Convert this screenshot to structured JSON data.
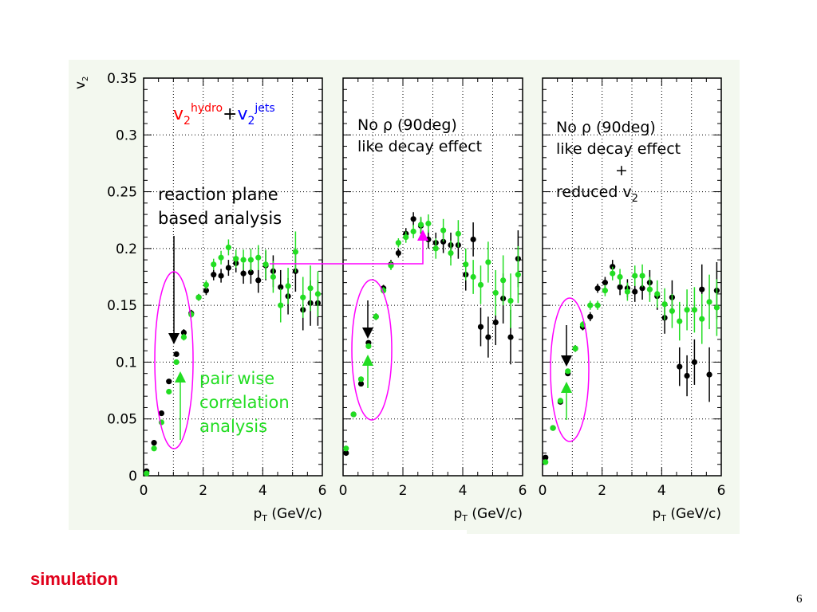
{
  "footer": {
    "label": "simulation",
    "page_number": "6"
  },
  "colors": {
    "black_series": "#000000",
    "green_series": "#22dd22",
    "highlight": "#ff00ff",
    "panel_bg": "#f3f8ef",
    "hydro": "#ff0000",
    "jets": "#0000ff"
  },
  "annotations": {
    "p1_title": {
      "v2a": "v",
      "sub_a": "2",
      "sup_a": "hydro",
      "plus": "+",
      "v2b": "v",
      "sub_b": "2",
      "sup_b": "jets"
    },
    "p1_rp": [
      "reaction plane",
      "based analysis"
    ],
    "p1_pw": [
      "pair wise",
      "correlation",
      "analysis"
    ],
    "p2_text": [
      "No ρ (90deg)",
      "like decay effect"
    ],
    "p3_text": [
      "No ρ (90deg)",
      "like decay effect",
      "+"
    ],
    "p3_reduced": {
      "text": "reduced v",
      "sub": "2"
    }
  },
  "chart_data": [
    {
      "type": "scatter",
      "ylabel": {
        "v": "v",
        "sub": "2"
      },
      "xlabel": {
        "p": "p",
        "sub": "T",
        "rest": " (GeV/c)"
      },
      "xlim": [
        0,
        6
      ],
      "ylim": [
        0,
        0.35
      ],
      "x_ticks": [
        "0",
        "2",
        "4",
        "6"
      ],
      "y_ticks": [
        "0",
        "0.05",
        "0.1",
        "0.15",
        "0.2",
        "0.25",
        "0.3",
        "0.35"
      ],
      "series": [
        {
          "color": "#000000",
          "points": [
            [
              0.1,
              0.004,
              0.002
            ],
            [
              0.35,
              0.029,
              0.002
            ],
            [
              0.6,
              0.055,
              0.002
            ],
            [
              0.85,
              0.083,
              0.002
            ],
            [
              1.1,
              0.107,
              0.002
            ],
            [
              1.35,
              0.126,
              0.003
            ],
            [
              1.6,
              0.143,
              0.003
            ],
            [
              1.85,
              0.157,
              0.003
            ],
            [
              2.1,
              0.163,
              0.004
            ],
            [
              2.35,
              0.177,
              0.005
            ],
            [
              2.6,
              0.176,
              0.006
            ],
            [
              2.85,
              0.183,
              0.007
            ],
            [
              3.1,
              0.187,
              0.008
            ],
            [
              3.35,
              0.178,
              0.009
            ],
            [
              3.6,
              0.179,
              0.01
            ],
            [
              3.85,
              0.172,
              0.011
            ],
            [
              4.1,
              0.185,
              0.013
            ],
            [
              4.35,
              0.18,
              0.014
            ],
            [
              4.6,
              0.166,
              0.015
            ],
            [
              4.85,
              0.158,
              0.016
            ],
            [
              5.1,
              0.18,
              0.018
            ],
            [
              5.35,
              0.146,
              0.018
            ],
            [
              5.6,
              0.152,
              0.02
            ],
            [
              5.85,
              0.152,
              0.02
            ]
          ]
        },
        {
          "color": "#22dd22",
          "points": [
            [
              0.1,
              0.002,
              0.002
            ],
            [
              0.35,
              0.024,
              0.002
            ],
            [
              0.6,
              0.047,
              0.002
            ],
            [
              0.85,
              0.074,
              0.002
            ],
            [
              1.1,
              0.1,
              0.002
            ],
            [
              1.35,
              0.122,
              0.003
            ],
            [
              1.6,
              0.142,
              0.003
            ],
            [
              1.85,
              0.157,
              0.003
            ],
            [
              2.1,
              0.168,
              0.004
            ],
            [
              2.35,
              0.186,
              0.005
            ],
            [
              2.6,
              0.192,
              0.006
            ],
            [
              2.85,
              0.201,
              0.007
            ],
            [
              3.1,
              0.191,
              0.008
            ],
            [
              3.35,
              0.19,
              0.009
            ],
            [
              3.6,
              0.19,
              0.01
            ],
            [
              3.85,
              0.192,
              0.011
            ],
            [
              4.1,
              0.186,
              0.013
            ],
            [
              4.35,
              0.175,
              0.014
            ],
            [
              4.6,
              0.15,
              0.015
            ],
            [
              4.85,
              0.167,
              0.016
            ],
            [
              5.1,
              0.197,
              0.018
            ],
            [
              5.35,
              0.157,
              0.018
            ],
            [
              5.6,
              0.165,
              0.02
            ],
            [
              5.85,
              0.16,
              0.02
            ]
          ]
        }
      ]
    },
    {
      "type": "scatter",
      "xlabel": {
        "p": "p",
        "sub": "T",
        "rest": " (GeV/c)"
      },
      "xlim": [
        0,
        6
      ],
      "ylim": [
        0,
        0.35
      ],
      "x_ticks": [
        "0",
        "2",
        "4",
        "6"
      ],
      "series": [
        {
          "color": "#000000",
          "points": [
            [
              0.1,
              0.02,
              0.002
            ],
            [
              0.35,
              0.054,
              0.002
            ],
            [
              0.6,
              0.081,
              0.002
            ],
            [
              0.85,
              0.117,
              0.002
            ],
            [
              1.1,
              0.14,
              0.003
            ],
            [
              1.35,
              0.165,
              0.003
            ],
            [
              1.6,
              0.186,
              0.004
            ],
            [
              1.85,
              0.196,
              0.004
            ],
            [
              2.1,
              0.213,
              0.005
            ],
            [
              2.35,
              0.226,
              0.006
            ],
            [
              2.6,
              0.22,
              0.007
            ],
            [
              2.85,
              0.208,
              0.008
            ],
            [
              3.1,
              0.205,
              0.009
            ],
            [
              3.35,
              0.206,
              0.01
            ],
            [
              3.6,
              0.203,
              0.011
            ],
            [
              3.85,
              0.203,
              0.012
            ],
            [
              4.1,
              0.177,
              0.014
            ],
            [
              4.35,
              0.208,
              0.015
            ],
            [
              4.6,
              0.131,
              0.017
            ],
            [
              4.85,
              0.122,
              0.018
            ],
            [
              5.1,
              0.135,
              0.02
            ],
            [
              5.35,
              0.156,
              0.022
            ],
            [
              5.6,
              0.122,
              0.024
            ],
            [
              5.85,
              0.191,
              0.025
            ]
          ]
        },
        {
          "color": "#22dd22",
          "points": [
            [
              0.1,
              0.024,
              0.002
            ],
            [
              0.35,
              0.054,
              0.002
            ],
            [
              0.6,
              0.085,
              0.002
            ],
            [
              0.85,
              0.114,
              0.002
            ],
            [
              1.1,
              0.14,
              0.003
            ],
            [
              1.35,
              0.163,
              0.003
            ],
            [
              1.6,
              0.185,
              0.004
            ],
            [
              1.85,
              0.205,
              0.004
            ],
            [
              2.1,
              0.21,
              0.005
            ],
            [
              2.35,
              0.215,
              0.006
            ],
            [
              2.6,
              0.221,
              0.007
            ],
            [
              2.85,
              0.222,
              0.008
            ],
            [
              3.1,
              0.2,
              0.009
            ],
            [
              3.35,
              0.216,
              0.01
            ],
            [
              3.6,
              0.196,
              0.011
            ],
            [
              3.85,
              0.213,
              0.012
            ],
            [
              4.1,
              0.186,
              0.014
            ],
            [
              4.35,
              0.175,
              0.015
            ],
            [
              4.6,
              0.168,
              0.017
            ],
            [
              4.85,
              0.188,
              0.018
            ],
            [
              5.1,
              0.161,
              0.02
            ],
            [
              5.35,
              0.172,
              0.022
            ],
            [
              5.6,
              0.154,
              0.024
            ],
            [
              5.85,
              0.177,
              0.025
            ]
          ]
        }
      ]
    },
    {
      "type": "scatter",
      "xlabel": {
        "p": "p",
        "sub": "T",
        "rest": " (GeV/c)"
      },
      "xlim": [
        0,
        6
      ],
      "ylim": [
        0,
        0.35
      ],
      "x_ticks": [
        "0",
        "2",
        "4",
        "6"
      ],
      "series": [
        {
          "color": "#000000",
          "points": [
            [
              0.1,
              0.016,
              0.002
            ],
            [
              0.35,
              0.042,
              0.002
            ],
            [
              0.6,
              0.065,
              0.002
            ],
            [
              0.85,
              0.09,
              0.002
            ],
            [
              1.1,
              0.112,
              0.003
            ],
            [
              1.35,
              0.131,
              0.003
            ],
            [
              1.6,
              0.14,
              0.004
            ],
            [
              1.85,
              0.165,
              0.004
            ],
            [
              2.1,
              0.17,
              0.005
            ],
            [
              2.35,
              0.184,
              0.006
            ],
            [
              2.6,
              0.166,
              0.007
            ],
            [
              2.85,
              0.165,
              0.008
            ],
            [
              3.1,
              0.162,
              0.009
            ],
            [
              3.35,
              0.165,
              0.01
            ],
            [
              3.6,
              0.17,
              0.011
            ],
            [
              3.85,
              0.158,
              0.012
            ],
            [
              4.1,
              0.139,
              0.014
            ],
            [
              4.35,
              0.157,
              0.015
            ],
            [
              4.6,
              0.096,
              0.017
            ],
            [
              4.85,
              0.088,
              0.018
            ],
            [
              5.1,
              0.1,
              0.02
            ],
            [
              5.35,
              0.164,
              0.022
            ],
            [
              5.6,
              0.089,
              0.024
            ],
            [
              5.85,
              0.163,
              0.025
            ]
          ]
        },
        {
          "color": "#22dd22",
          "points": [
            [
              0.1,
              0.012,
              0.002
            ],
            [
              0.35,
              0.042,
              0.002
            ],
            [
              0.6,
              0.066,
              0.002
            ],
            [
              0.85,
              0.092,
              0.002
            ],
            [
              1.1,
              0.112,
              0.003
            ],
            [
              1.35,
              0.133,
              0.003
            ],
            [
              1.6,
              0.15,
              0.004
            ],
            [
              1.85,
              0.15,
              0.004
            ],
            [
              2.1,
              0.163,
              0.005
            ],
            [
              2.35,
              0.178,
              0.006
            ],
            [
              2.6,
              0.175,
              0.007
            ],
            [
              2.85,
              0.162,
              0.008
            ],
            [
              3.1,
              0.176,
              0.009
            ],
            [
              3.35,
              0.176,
              0.01
            ],
            [
              3.6,
              0.164,
              0.011
            ],
            [
              3.85,
              0.16,
              0.012
            ],
            [
              4.1,
              0.151,
              0.014
            ],
            [
              4.35,
              0.145,
              0.015
            ],
            [
              4.6,
              0.136,
              0.017
            ],
            [
              4.85,
              0.146,
              0.018
            ],
            [
              5.1,
              0.146,
              0.02
            ],
            [
              5.35,
              0.138,
              0.022
            ],
            [
              5.6,
              0.153,
              0.024
            ],
            [
              5.85,
              0.148,
              0.025
            ]
          ]
        }
      ]
    }
  ]
}
